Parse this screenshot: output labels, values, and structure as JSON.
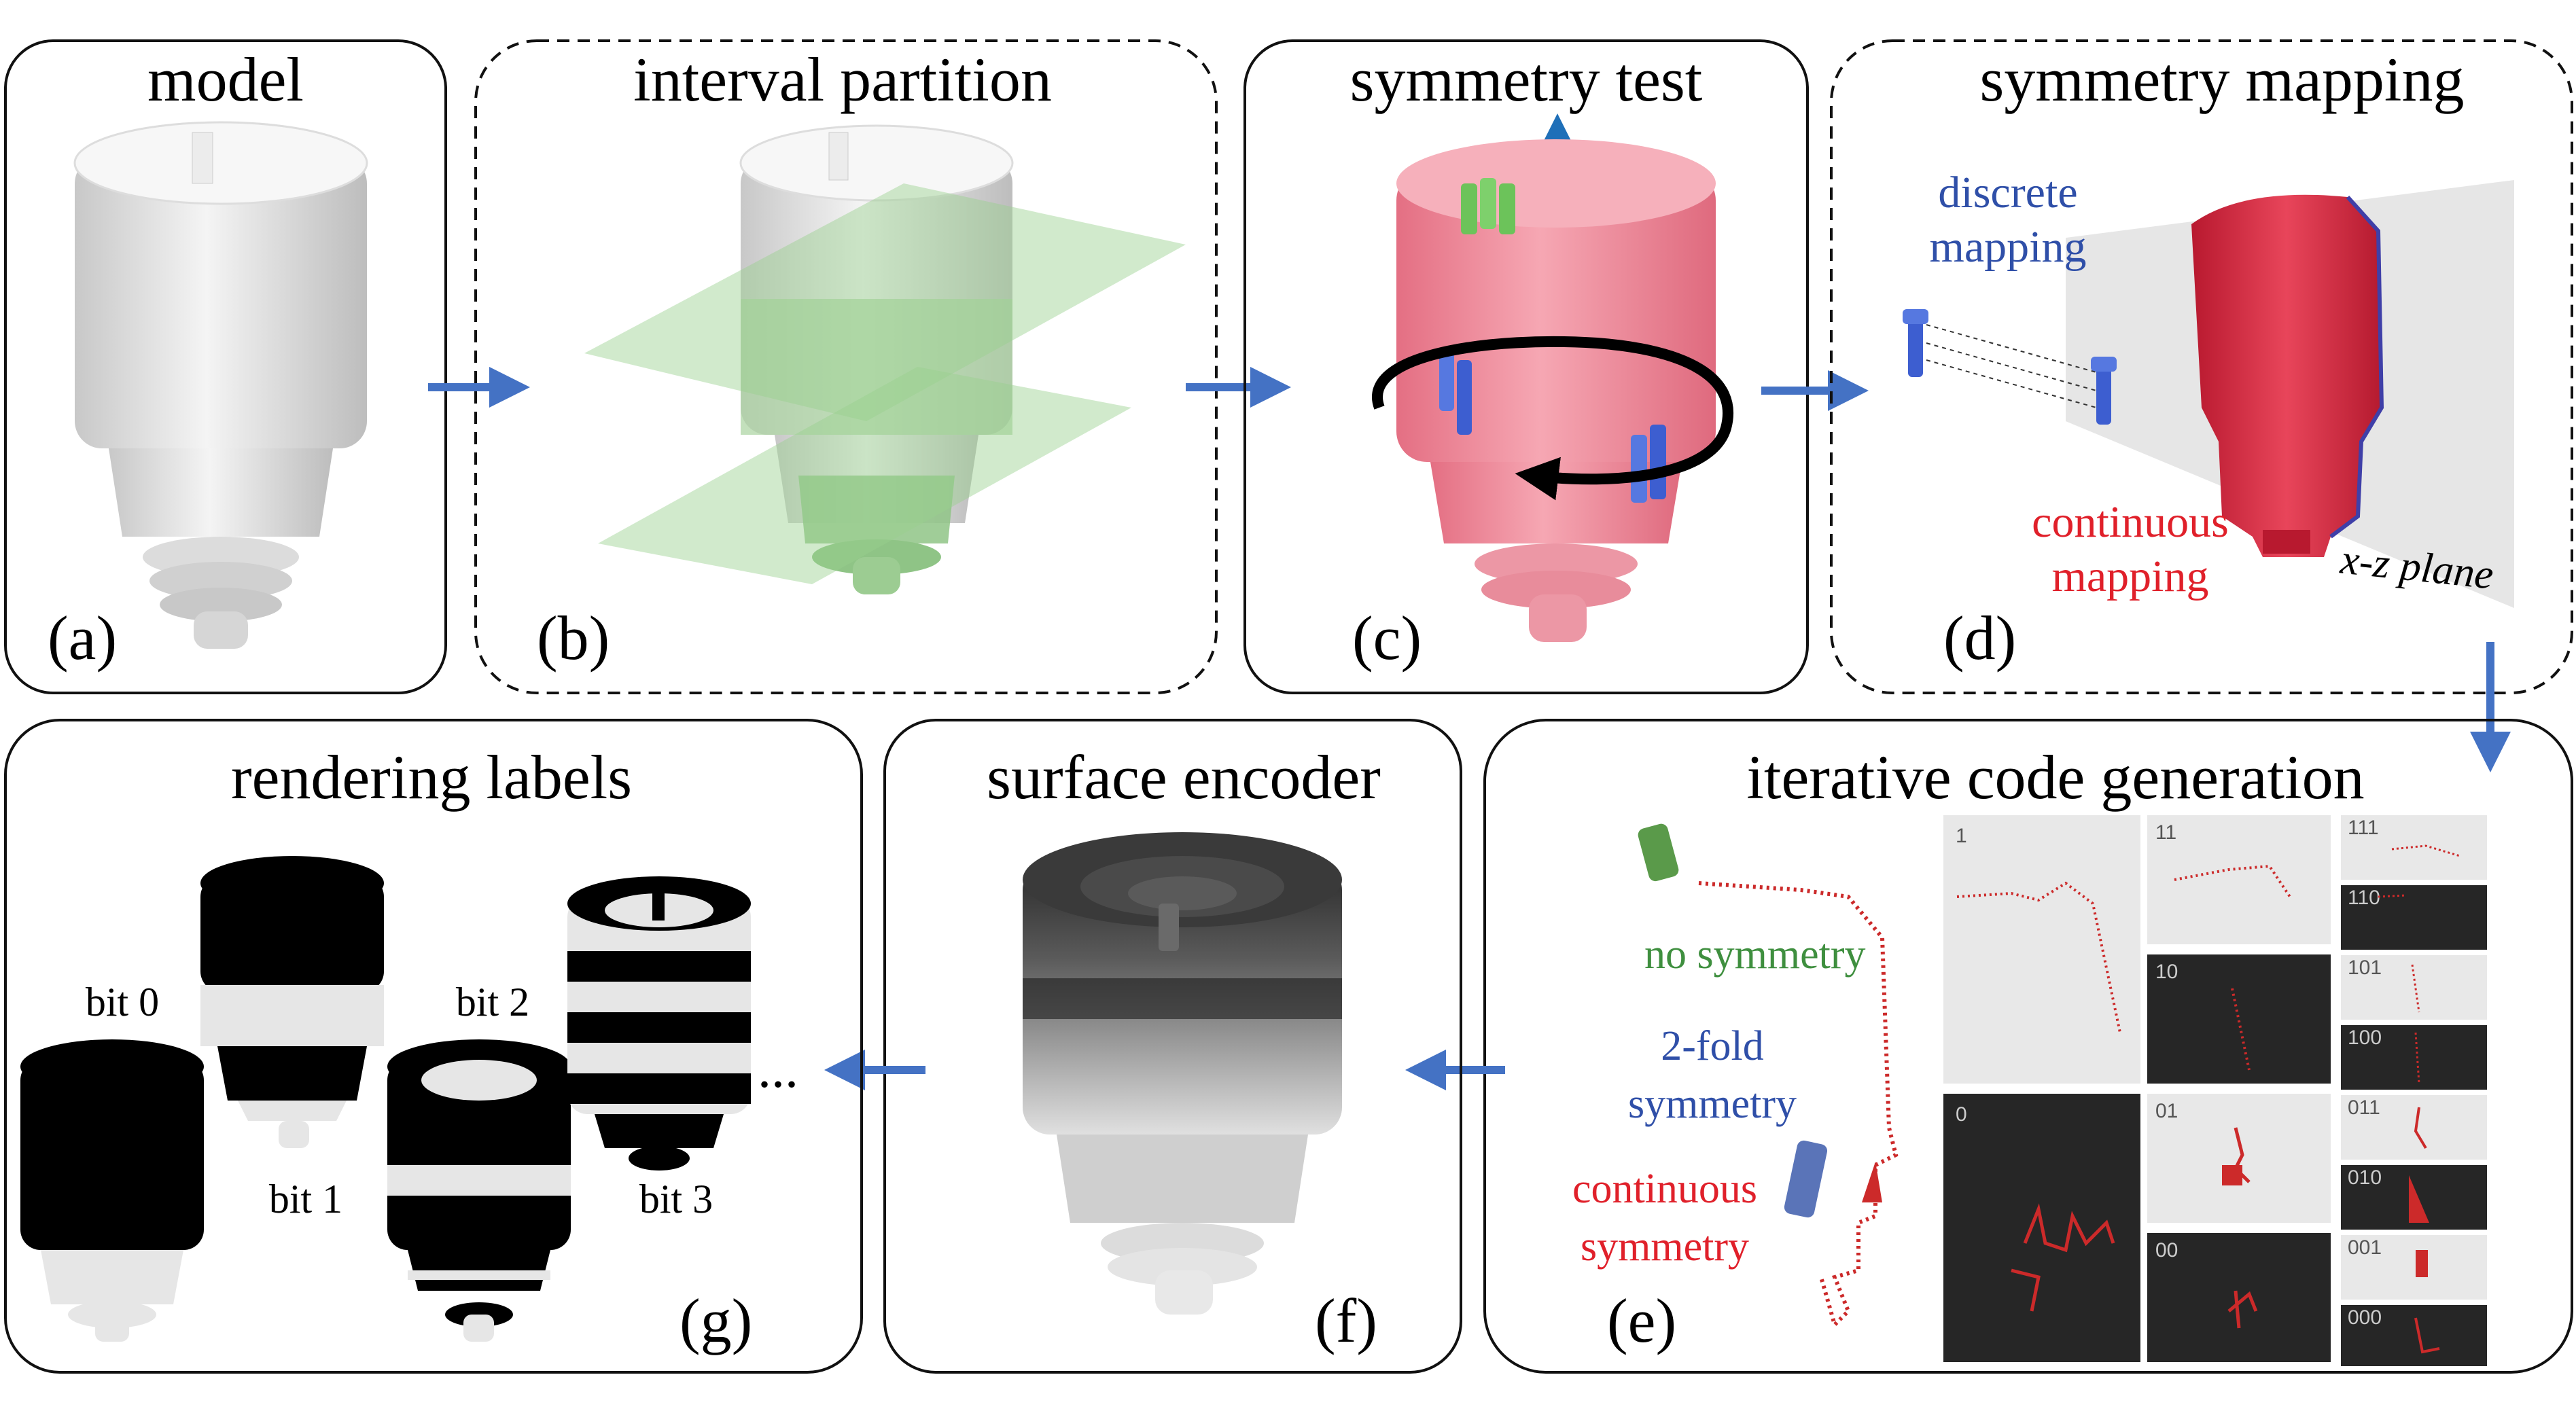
{
  "panels": {
    "a": {
      "title": "model",
      "tag": "(a)"
    },
    "b": {
      "title": "interval partition",
      "tag": "(b)"
    },
    "c": {
      "title": "symmetry test",
      "tag": "(c)"
    },
    "d": {
      "title": "symmetry mapping",
      "tag": "(d)",
      "discrete": [
        "discrete",
        "mapping"
      ],
      "continuous": [
        "continuous",
        "mapping"
      ],
      "plane": "x-z plane"
    },
    "e": {
      "title": "iterative code generation",
      "tag": "(e)",
      "no_sym": "no symmetry",
      "two_fold": [
        "2-fold",
        "symmetry"
      ],
      "continuous": [
        "continuous",
        "symmetry"
      ],
      "codes": [
        "1",
        "0",
        "11",
        "10",
        "01",
        "00",
        "111",
        "110",
        "101",
        "100",
        "011",
        "010",
        "001",
        "000"
      ]
    },
    "f": {
      "title": "surface encoder",
      "tag": "(f)"
    },
    "g": {
      "title": "rendering labels",
      "tag": "(g)",
      "bits": [
        "bit 0",
        "bit 1",
        "bit 2",
        "bit 3"
      ],
      "ellipsis": "..."
    }
  },
  "colors": {
    "arrow": "#4472c4",
    "red": "#e0202a",
    "blue": "#2f4fa8",
    "green": "#3f8f3f",
    "white_model": "#e6e6e6",
    "pink_model": "#ef8a9a",
    "dark_red": "#d6243a"
  }
}
